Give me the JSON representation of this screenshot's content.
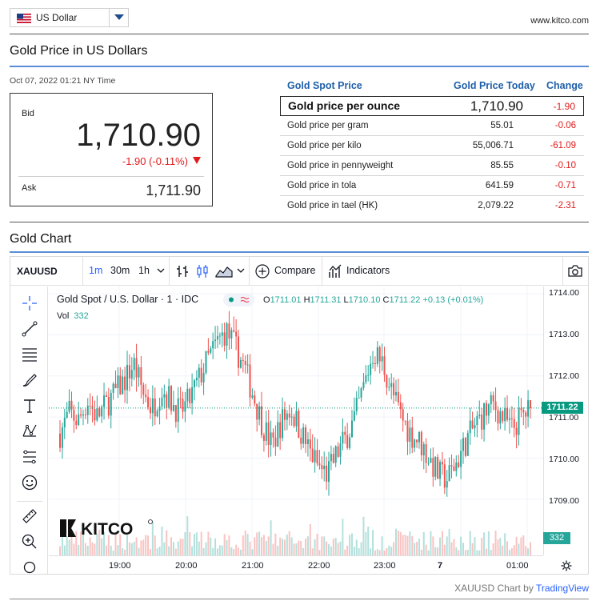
{
  "currency": {
    "label": "US Dollar"
  },
  "site": "www.kitco.com",
  "price_section": {
    "title": "Gold Price in US Dollars",
    "timestamp": "Oct 07, 2022 01:21 NY Time",
    "bid_label": "Bid",
    "bid_value": "1,710.90",
    "bid_change": "-1.90 (-0.11%)",
    "ask_label": "Ask",
    "ask_value": "1,711.90"
  },
  "spot_table": {
    "headers": [
      "Gold Spot Price",
      "Gold Price Today",
      "Change"
    ],
    "main": {
      "label": "Gold price per ounce",
      "value": "1,710.90",
      "change": "-1.90"
    },
    "rows": [
      {
        "label": "Gold price per gram",
        "value": "55.01",
        "change": "-0.06"
      },
      {
        "label": "Gold price per kilo",
        "value": "55,006.71",
        "change": "-61.09"
      },
      {
        "label": "Gold price in pennyweight",
        "value": "85.55",
        "change": "-0.10"
      },
      {
        "label": "Gold price in tola",
        "value": "641.59",
        "change": "-0.71"
      },
      {
        "label": "Gold price in tael (HK)",
        "value": "2,079.22",
        "change": "-2.31"
      }
    ]
  },
  "chart_section": {
    "title": "Gold Chart",
    "symbol": "XAUUSD",
    "intervals": [
      "1m",
      "30m",
      "1h"
    ],
    "active_interval": "1m",
    "compare_label": "Compare",
    "indicators_label": "Indicators",
    "legend_title": "Gold Spot / U.S. Dollar · 1 · IDC",
    "ohlc": {
      "o": "1711.01",
      "h": "1711.31",
      "l": "1710.10",
      "c": "1711.22",
      "chg": "+0.13 (+0.01%)"
    },
    "vol_label": "Vol",
    "vol_value": "332",
    "current_price": "1711.22",
    "logo_text": "KITCO",
    "footer": "XAUUSD Chart by",
    "footer_link": "TradingView"
  },
  "chart_data": {
    "type": "candlestick",
    "y_ticks": [
      "1714.00",
      "1713.00",
      "1712.00",
      "1711.00",
      "1710.00",
      "1709.00"
    ],
    "x_ticks": [
      "19:00",
      "20:00",
      "21:00",
      "22:00",
      "23:00",
      "7",
      "01:00"
    ],
    "ylim": [
      1708.1,
      1714.1
    ],
    "last_close": 1711.22,
    "last_volume": 332,
    "colors": {
      "up": "#26a69a",
      "down": "#ef5350"
    },
    "series_path": [
      1710.6,
      1711.1,
      1710.9,
      1711.4,
      1711.0,
      1711.3,
      1711.6,
      1711.9,
      1712.3,
      1711.6,
      1711.2,
      1711.7,
      1711.4,
      1711.1,
      1711.4,
      1711.9,
      1712.4,
      1712.8,
      1713.1,
      1712.7,
      1712.2,
      1711.5,
      1710.8,
      1710.3,
      1710.9,
      1711.2,
      1710.7,
      1710.2,
      1709.8,
      1709.6,
      1710.1,
      1710.5,
      1711.0,
      1711.8,
      1712.6,
      1712.3,
      1711.6,
      1711.0,
      1710.6,
      1710.4,
      1710.0,
      1709.6,
      1709.5,
      1709.9,
      1710.4,
      1710.8,
      1711.1,
      1711.3,
      1711.0,
      1710.7,
      1711.0,
      1711.2
    ]
  }
}
